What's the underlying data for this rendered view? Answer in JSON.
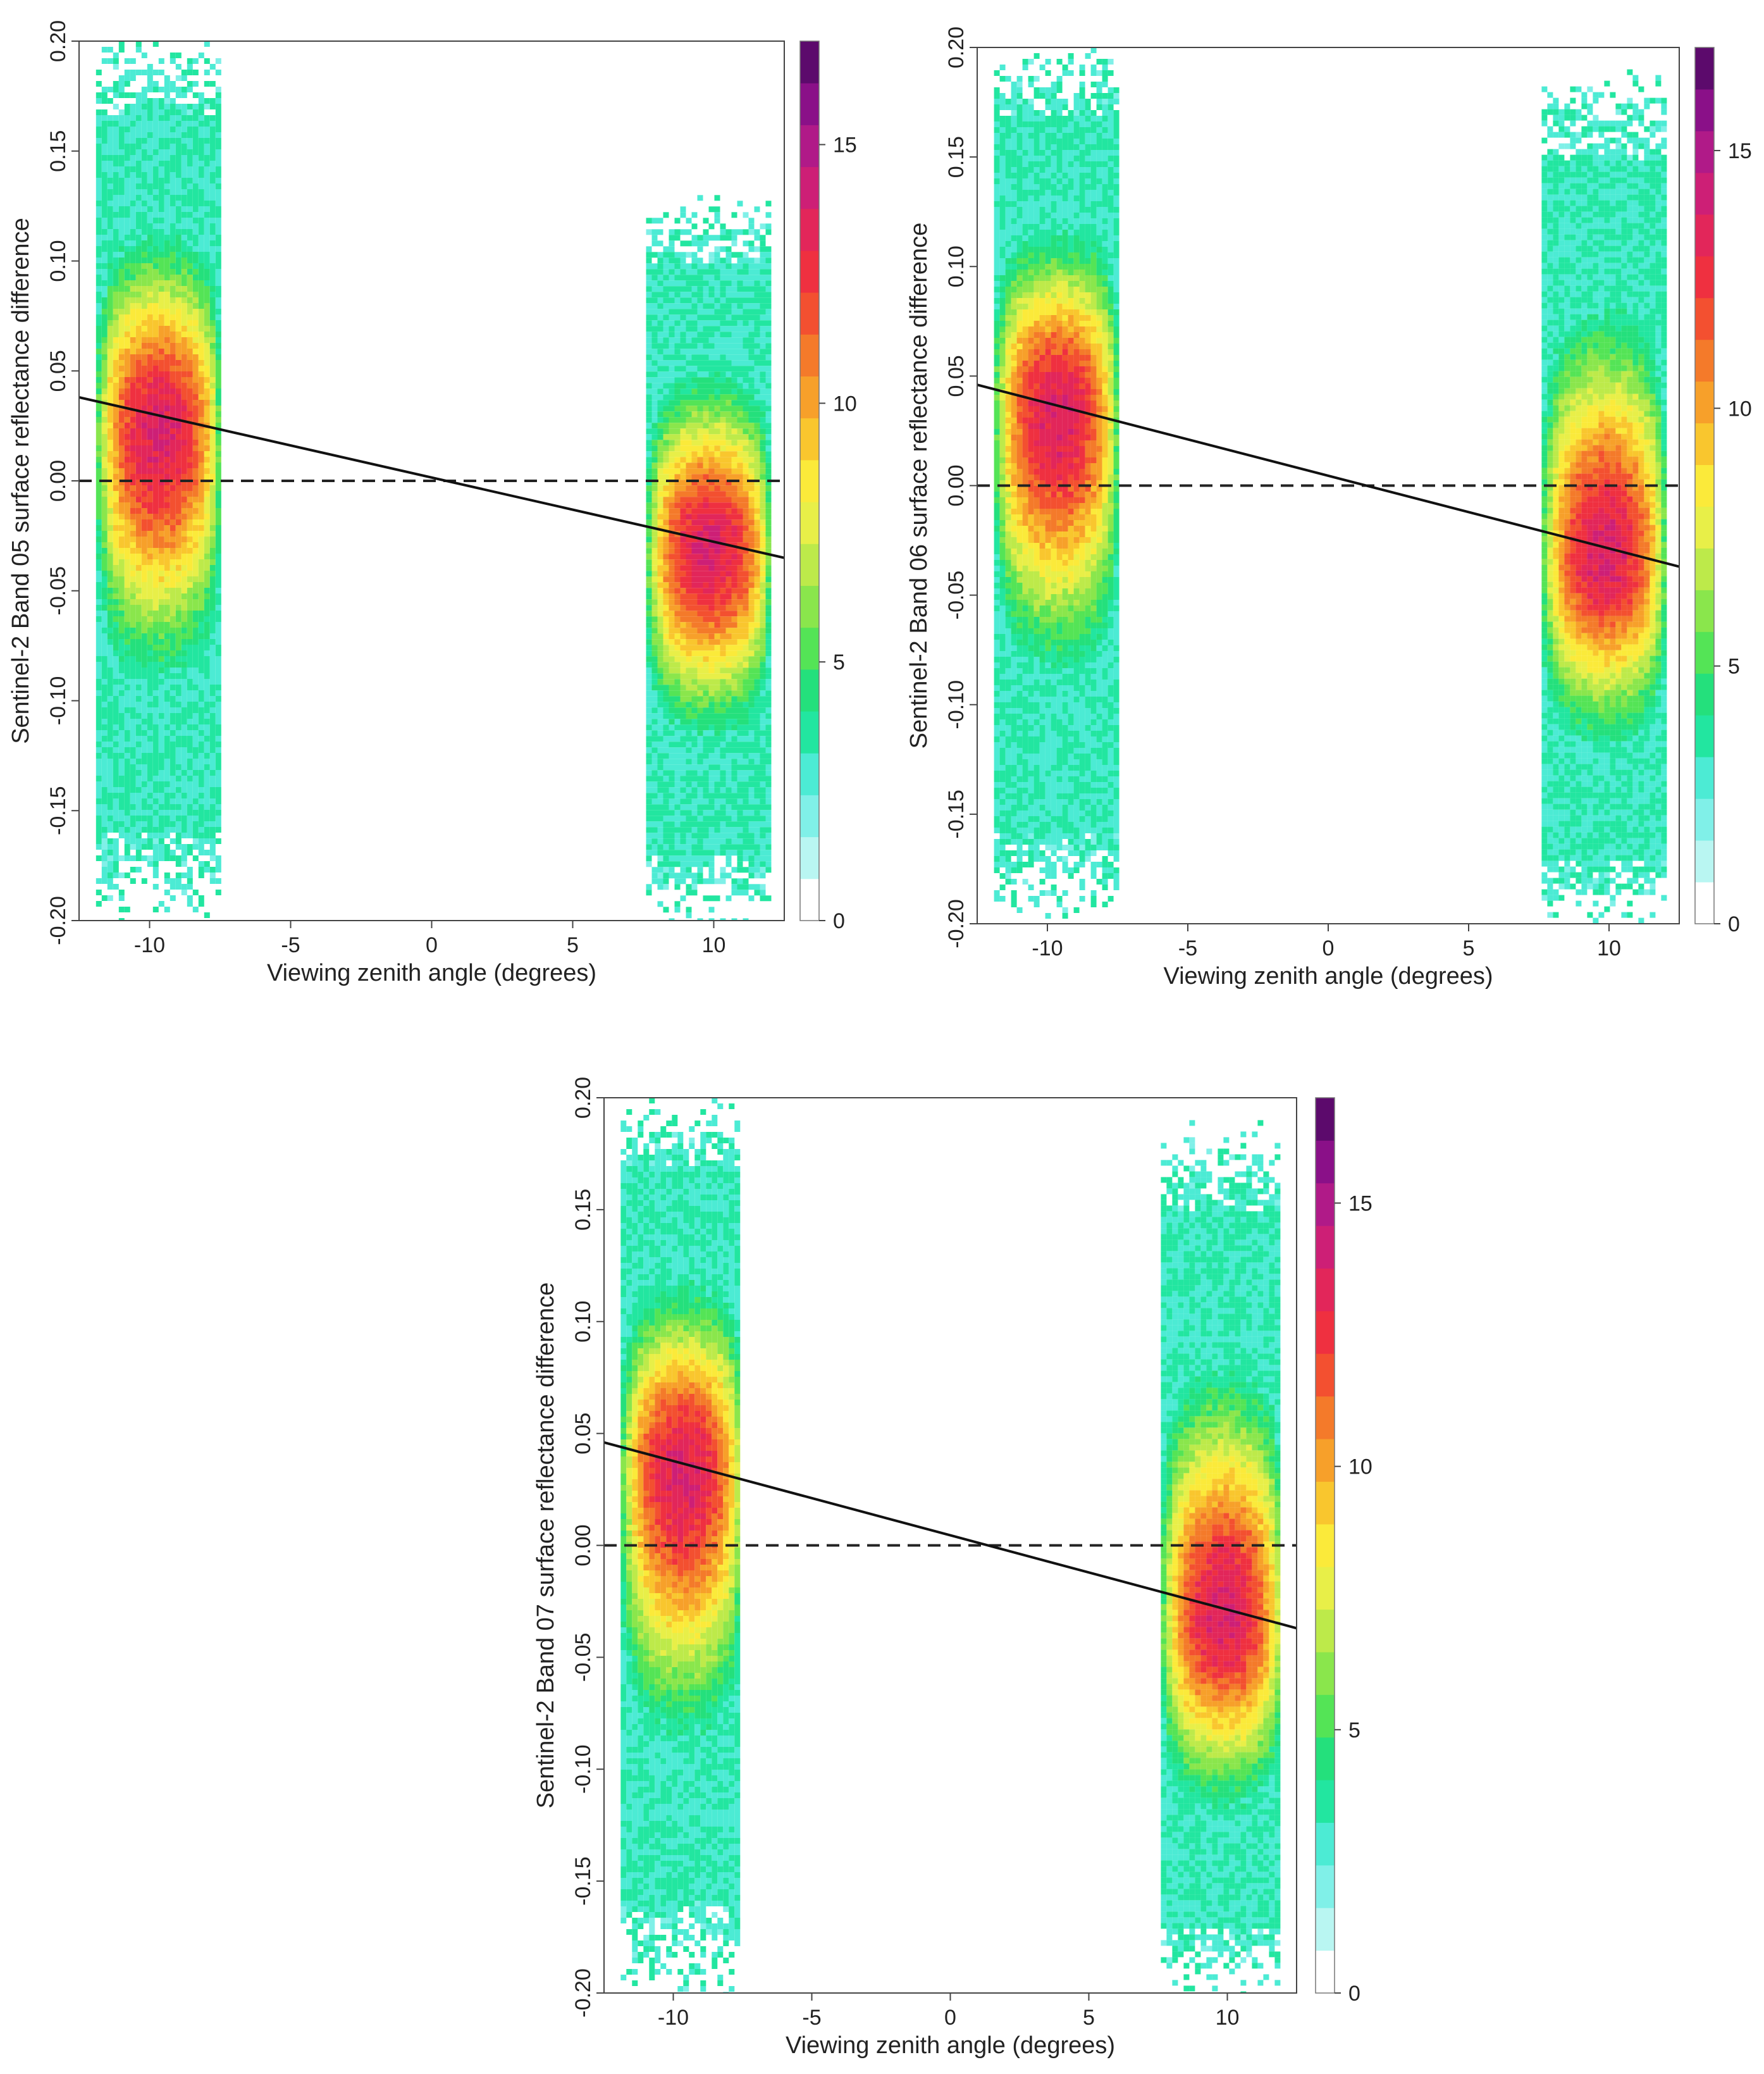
{
  "figure_title": "",
  "colorbar": {
    "ticks": [
      0,
      5,
      10,
      15
    ],
    "colors": [
      "#ffffff",
      "#b9f6f2",
      "#80f0e8",
      "#4cebd4",
      "#22e6a0",
      "#24e07c",
      "#54e456",
      "#8ae64c",
      "#bdea4a",
      "#e8ef48",
      "#fbea3a",
      "#f9c62e",
      "#f7a02a",
      "#f47a2a",
      "#f35030",
      "#ef3040",
      "#e2265a",
      "#cd1f76",
      "#b01a88",
      "#8a1088",
      "#5c0a6c"
    ]
  },
  "chart_data": [
    {
      "type": "heatmap",
      "title": "",
      "xlabel": "Viewing zenith angle (degrees)",
      "ylabel": "Sentinel-2 Band 05 surface reflectance difference",
      "xlim": [
        -12.5,
        12.5
      ],
      "ylim": [
        -0.2,
        0.2
      ],
      "x_ticks": [
        -10,
        -5,
        0,
        5,
        10
      ],
      "y_ticks": [
        "-0.20",
        "-0.15",
        "-0.10",
        "-0.05",
        "0.00",
        "0.05",
        "0.10",
        "0.15",
        "0.20"
      ],
      "colorbar_range": [
        0,
        17
      ],
      "colorbar_ticks": [
        0,
        5,
        10,
        15
      ],
      "clusters": [
        {
          "x_range": [
            -11.9,
            -7.6
          ],
          "y_range": [
            -0.2,
            0.2
          ],
          "peak_y": 0.025,
          "peak_value": 14
        },
        {
          "x_range": [
            7.6,
            11.9
          ],
          "y_range": [
            -0.2,
            0.13
          ],
          "peak_y": -0.03,
          "peak_value": 14
        }
      ],
      "fit_line": {
        "x": [
          -12.5,
          12.5
        ],
        "y": [
          0.038,
          -0.035
        ]
      },
      "reference_line": {
        "y": 0.0,
        "style": "dashed"
      }
    },
    {
      "type": "heatmap",
      "title": "",
      "xlabel": "Viewing zenith angle (degrees)",
      "ylabel": "Sentinel-2 Band 06 surface reflectance difference",
      "xlim": [
        -12.5,
        12.5
      ],
      "ylim": [
        -0.2,
        0.2
      ],
      "x_ticks": [
        -10,
        -5,
        0,
        5,
        10
      ],
      "y_ticks": [
        "-0.20",
        "-0.15",
        "-0.10",
        "-0.05",
        "0.00",
        "0.05",
        "0.10",
        "0.15",
        "0.20"
      ],
      "colorbar_range": [
        0,
        17
      ],
      "colorbar_ticks": [
        0,
        5,
        10,
        15
      ],
      "clusters": [
        {
          "x_range": [
            -11.9,
            -7.6
          ],
          "y_range": [
            -0.2,
            0.2
          ],
          "peak_y": 0.035,
          "peak_value": 14
        },
        {
          "x_range": [
            7.6,
            11.9
          ],
          "y_range": [
            -0.2,
            0.19
          ],
          "peak_y": -0.03,
          "peak_value": 14
        }
      ],
      "fit_line": {
        "x": [
          -12.5,
          12.5
        ],
        "y": [
          0.046,
          -0.037
        ]
      },
      "reference_line": {
        "y": 0.0,
        "style": "dashed"
      }
    },
    {
      "type": "heatmap",
      "title": "",
      "xlabel": "Viewing zenith angle (degrees)",
      "ylabel": "Sentinel-2 Band 07 surface reflectance difference",
      "xlim": [
        -12.5,
        12.5
      ],
      "ylim": [
        -0.2,
        0.2
      ],
      "x_ticks": [
        -10,
        -5,
        0,
        5,
        10
      ],
      "y_ticks": [
        "-0.20",
        "-0.15",
        "-0.10",
        "-0.05",
        "0.00",
        "0.05",
        "0.10",
        "0.15",
        "0.20"
      ],
      "colorbar_range": [
        0,
        17
      ],
      "colorbar_ticks": [
        0,
        5,
        10,
        15
      ],
      "clusters": [
        {
          "x_range": [
            -11.9,
            -7.6
          ],
          "y_range": [
            -0.2,
            0.2
          ],
          "peak_y": 0.035,
          "peak_value": 14
        },
        {
          "x_range": [
            7.6,
            11.9
          ],
          "y_range": [
            -0.2,
            0.19
          ],
          "peak_y": -0.03,
          "peak_value": 14
        }
      ],
      "fit_line": {
        "x": [
          -12.5,
          12.5
        ],
        "y": [
          0.046,
          -0.037
        ]
      },
      "reference_line": {
        "y": 0.0,
        "style": "dashed"
      }
    }
  ]
}
